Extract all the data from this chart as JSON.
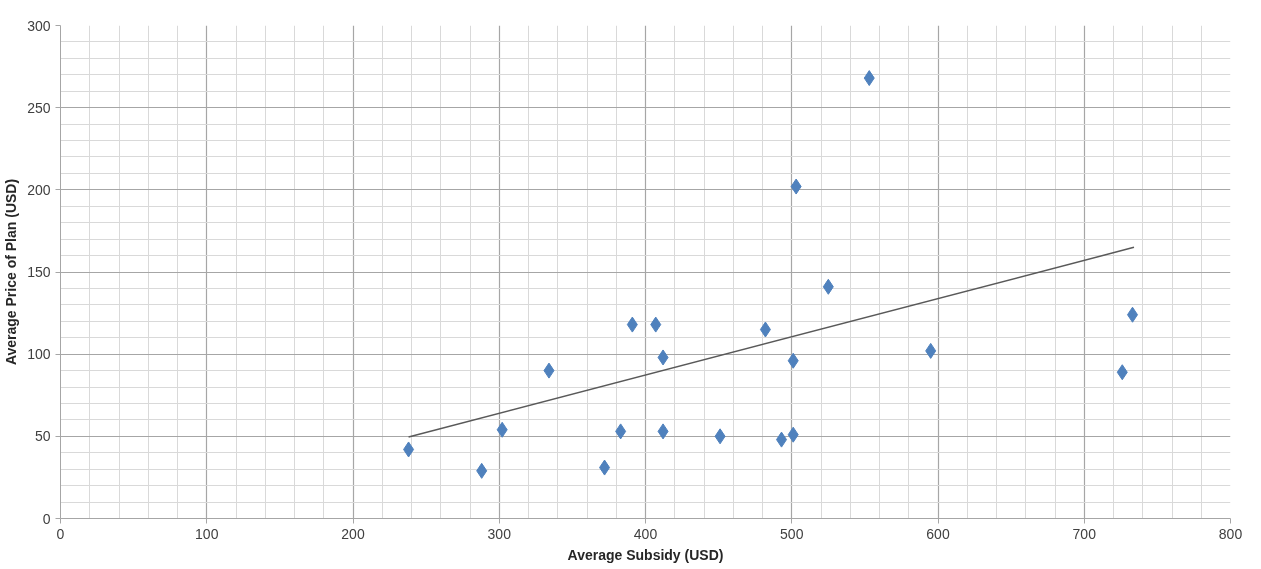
{
  "chart_data": {
    "type": "scatter",
    "xlabel": "Average Subsidy (USD)",
    "ylabel": "Average Price of Plan (USD)",
    "xlim": [
      0,
      800
    ],
    "ylim": [
      0,
      300
    ],
    "xticks": [
      0,
      100,
      200,
      300,
      400,
      500,
      600,
      700,
      800
    ],
    "yticks": [
      0,
      50,
      100,
      150,
      200,
      250,
      300
    ],
    "grid": true,
    "series": [
      {
        "marker": "diamond",
        "color": "#4f81bd",
        "x": [
          238,
          288,
          302,
          334,
          372,
          383,
          391,
          407,
          412,
          412,
          451,
          482,
          493,
          501,
          501,
          503,
          525,
          553,
          595,
          726,
          733
        ],
        "values": [
          42,
          29,
          54,
          90,
          31,
          53,
          118,
          118,
          98,
          53,
          50,
          115,
          48,
          51,
          96,
          202,
          141,
          268,
          102,
          89,
          124
        ]
      },
      {
        "type": "line",
        "color": "#595959",
        "line_style": "solid",
        "x": [
          238,
          734
        ],
        "values": [
          49.6,
          165
        ]
      }
    ]
  }
}
